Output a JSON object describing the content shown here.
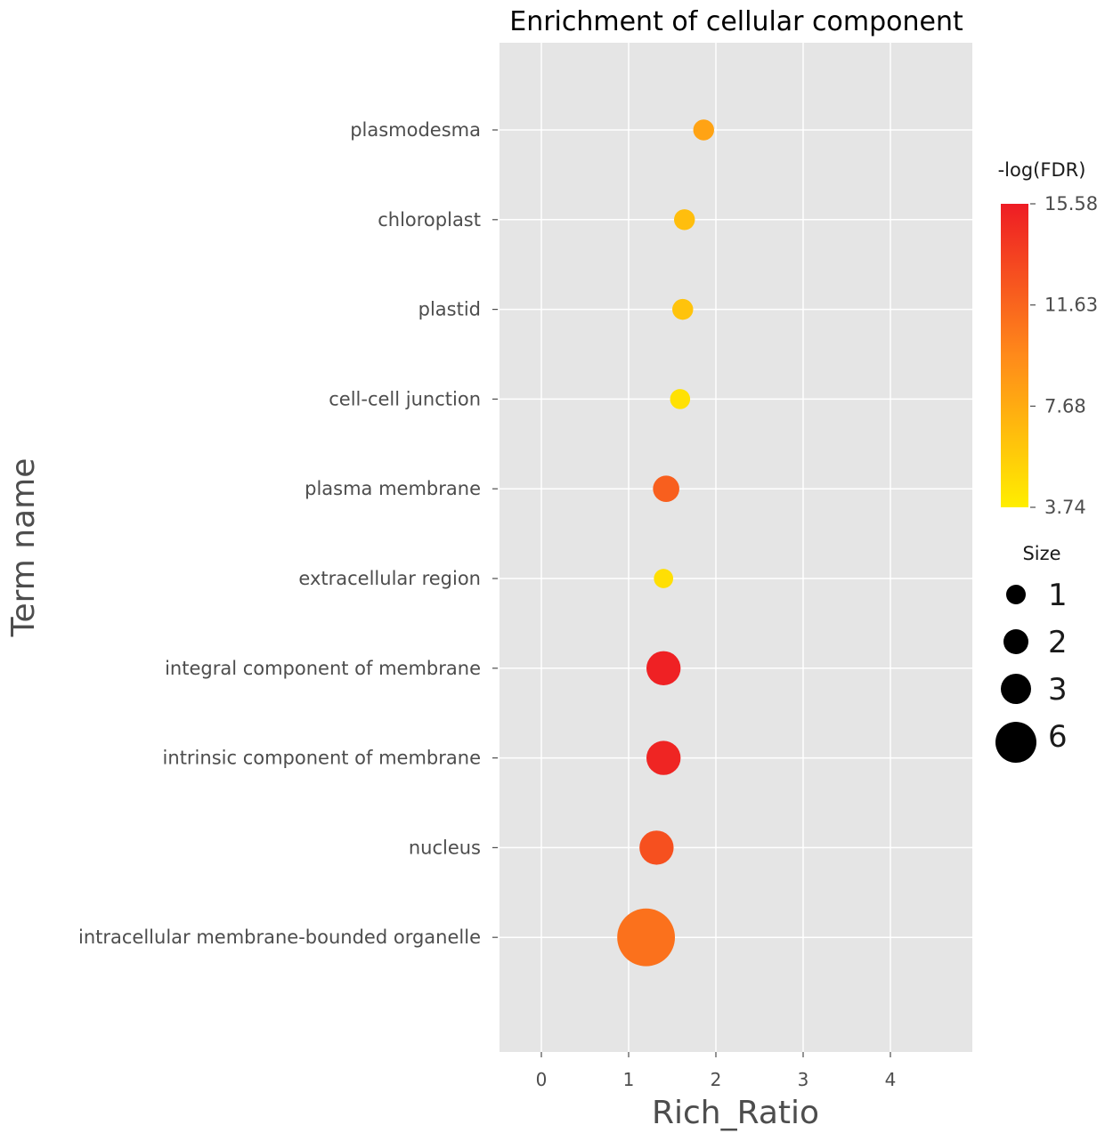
{
  "chart_data": {
    "type": "scatter",
    "title": "Enrichment of cellular component",
    "xlabel": "Rich_Ratio",
    "ylabel": "Term name",
    "xlim": [
      -0.5,
      4.95
    ],
    "xticks": [
      0,
      1,
      2,
      3,
      4
    ],
    "grid": true,
    "points": [
      {
        "term": "plasmodesma",
        "rich_ratio": 1.86,
        "neg_log_fdr": 8.2,
        "size": 1.3
      },
      {
        "term": "chloroplast",
        "rich_ratio": 1.64,
        "neg_log_fdr": 6.6,
        "size": 1.3
      },
      {
        "term": "plastid",
        "rich_ratio": 1.62,
        "neg_log_fdr": 6.3,
        "size": 1.3
      },
      {
        "term": "cell-cell junction",
        "rich_ratio": 1.59,
        "neg_log_fdr": 4.5,
        "size": 1.2
      },
      {
        "term": "plasma membrane",
        "rich_ratio": 1.43,
        "neg_log_fdr": 12.0,
        "size": 2.0
      },
      {
        "term": "extracellular region",
        "rich_ratio": 1.4,
        "neg_log_fdr": 4.6,
        "size": 1.1
      },
      {
        "term": "integral component of membrane",
        "rich_ratio": 1.4,
        "neg_log_fdr": 15.3,
        "size": 3.0
      },
      {
        "term": "intrinsic component of membrane",
        "rich_ratio": 1.4,
        "neg_log_fdr": 15.1,
        "size": 3.0
      },
      {
        "term": "nucleus",
        "rich_ratio": 1.32,
        "neg_log_fdr": 12.8,
        "size": 3.0
      },
      {
        "term": "intracellular membrane-bounded organelle",
        "rich_ratio": 1.2,
        "neg_log_fdr": 11.0,
        "size": 6.0
      }
    ],
    "colorbar": {
      "title": "-log(FDR)",
      "ticks": [
        "15.58",
        "11.63",
        "7.68",
        "3.74"
      ],
      "min": 3.74,
      "max": 15.58,
      "low_color": "#ffee00",
      "mid_color": "#ff8a1a",
      "high_color": "#ee1c24"
    },
    "size_legend": {
      "title": "Size",
      "items": [
        {
          "label": "1",
          "value": 1
        },
        {
          "label": "2",
          "value": 2
        },
        {
          "label": "3",
          "value": 3
        },
        {
          "label": "6",
          "value": 6
        }
      ]
    },
    "colors": {
      "panel_bg": "#e5e5e5",
      "grid": "#ffffff",
      "legend_dot": "#000000"
    }
  }
}
